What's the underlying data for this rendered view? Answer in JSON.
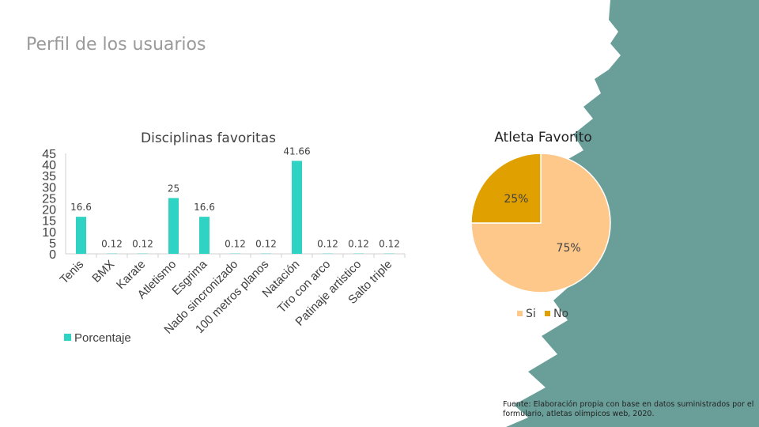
{
  "slide": {
    "title": "Perfil de los usuarios",
    "source_note": "Fuente: Elaboración propia con base en datos suministrados por el formulario, atletas olímpicos web, 2020."
  },
  "colors": {
    "bar": "#2ed3c3",
    "pie_si": "#fec88a",
    "pie_no": "#e0a000",
    "background_brush": "#6a9f99"
  },
  "chart_data": [
    {
      "type": "bar",
      "title": "Disciplinas favoritas",
      "categories": [
        "Tenis",
        "BMX",
        "Karate",
        "Atletismo",
        "Esgrima",
        "Nado sincronizado",
        "100 metros planos",
        "Natación",
        "Tiro con arco",
        "Patinaje artistico",
        "Salto triple"
      ],
      "series": [
        {
          "name": "Porcentaje",
          "values": [
            16.6,
            0.12,
            0.12,
            25,
            16.6,
            0.12,
            0.12,
            41.66,
            0.12,
            0.12,
            0.12
          ]
        }
      ],
      "data_labels": [
        "16.6",
        "0.12",
        "0.12",
        "25",
        "16.6",
        "0.12",
        "0.12",
        "41.66",
        "0.12",
        "0.12",
        "0.12"
      ],
      "ylim": [
        0,
        45
      ],
      "yticks": [
        0,
        5,
        10,
        15,
        20,
        25,
        30,
        35,
        40,
        45
      ],
      "legend_position": "bottom-left",
      "grid": false
    },
    {
      "type": "pie",
      "title": "Atleta Favorito",
      "labels": [
        "Si",
        "No"
      ],
      "values": [
        75,
        25
      ],
      "data_labels": [
        "75%",
        "25%"
      ],
      "legend_position": "bottom"
    }
  ]
}
